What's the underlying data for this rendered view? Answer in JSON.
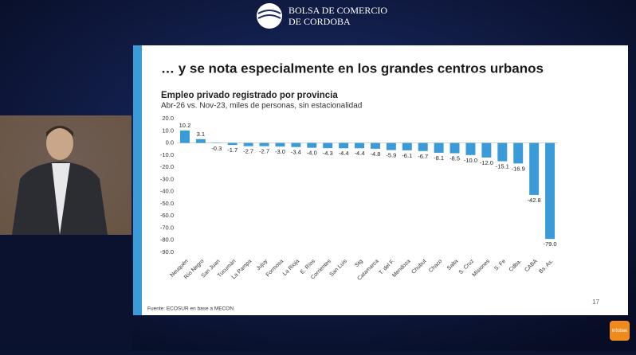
{
  "header": {
    "logo_line1": "BOLSA DE COMERCIO",
    "logo_line2": "DE CORDOBA"
  },
  "slide": {
    "title": "… y se nota especialmente en los grandes centros urbanos",
    "source": "Fuente: ECOSUR en base a MECON",
    "page": "17"
  },
  "corner_logo": "infobae",
  "chart_data": {
    "type": "bar",
    "title": "Empleo privado registrado por provincia",
    "subtitle": "Abr-26 vs. Nov-23, miles de personas, sin estacionalidad",
    "categories": [
      "Neuquén",
      "Río Negro",
      "San Juan",
      "Tucumán",
      "La Pampa",
      "Jujuy",
      "Formosa",
      "La Rioja",
      "E. Ríos",
      "Corrientes",
      "San Luis",
      "Stg",
      "Catamarca",
      "T. del F.",
      "Mendoza",
      "Chubut",
      "Chaco",
      "Salta",
      "S. Cruz",
      "Misiones",
      "S. Fe",
      "Cdba.",
      "CABA",
      "Bs. As."
    ],
    "values": [
      10.2,
      3.1,
      -0.3,
      -1.7,
      -2.7,
      -2.7,
      -3.0,
      -3.4,
      -4.0,
      -4.3,
      -4.4,
      -4.4,
      -4.8,
      -5.9,
      -6.1,
      -6.7,
      -8.1,
      -8.5,
      -10.0,
      -12.0,
      -15.1,
      -16.9,
      -42.8,
      -79.0
    ],
    "value_labels": [
      "10.2",
      "3.1",
      "-0.3",
      "-1.7",
      "-2.7",
      "-2.7",
      "-3.0",
      "-3.4",
      "-4.0",
      "-4.3",
      "-4.4",
      "-4.4",
      "-4.8",
      "-5.9",
      "-6.1",
      "-6.7",
      "-8.1",
      "-8.5",
      "-10.0",
      "-12.0",
      "-15.1",
      "-16.9",
      "-42.8",
      "-79.0"
    ],
    "color": "#3b9bd8",
    "ylim": [
      -90,
      20
    ],
    "yticks": [
      {
        "value": 20,
        "label": "20.0"
      },
      {
        "value": 10,
        "label": "10.0"
      },
      {
        "value": 0,
        "label": "0.0"
      },
      {
        "value": -10,
        "label": "-10.0"
      },
      {
        "value": -20,
        "label": "-20.0"
      },
      {
        "value": -30,
        "label": "-30.0"
      },
      {
        "value": -40,
        "label": "-40.0"
      },
      {
        "value": -50,
        "label": "-50.0"
      },
      {
        "value": -60,
        "label": "-60.0"
      },
      {
        "value": -70,
        "label": "-70.0"
      },
      {
        "value": -80,
        "label": "-80.0"
      },
      {
        "value": -90,
        "label": "-90.0"
      }
    ],
    "grid": false
  }
}
